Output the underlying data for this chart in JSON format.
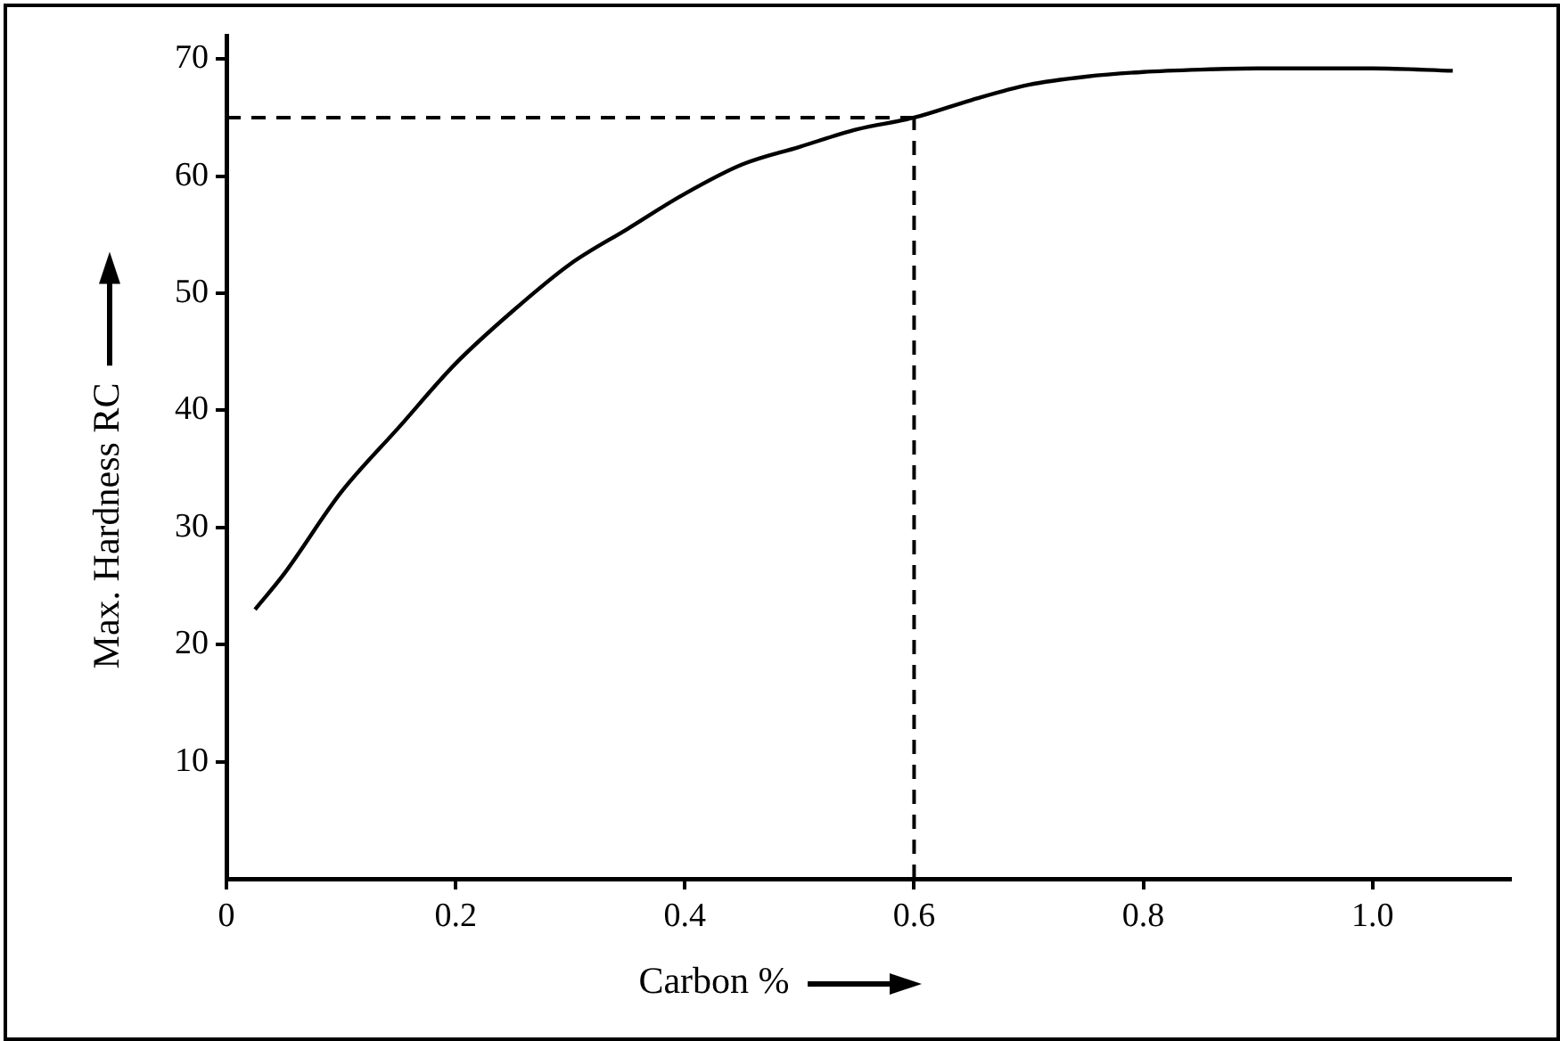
{
  "chart_data": {
    "type": "line",
    "xlabel": "Carbon %",
    "ylabel": "Max. Hardness RC",
    "x": [
      0.025,
      0.05,
      0.1,
      0.15,
      0.2,
      0.25,
      0.3,
      0.35,
      0.4,
      0.45,
      0.5,
      0.55,
      0.6,
      0.65,
      0.7,
      0.75,
      0.8,
      0.85,
      0.9,
      0.95,
      1.0,
      1.07
    ],
    "series": [
      {
        "color": "#000000",
        "values": [
          23,
          26,
          33,
          38.5,
          44,
          48.5,
          52.5,
          55.5,
          58.5,
          61,
          62.5,
          64,
          65,
          66.5,
          67.8,
          68.5,
          68.9,
          69.1,
          69.2,
          69.2,
          69.2,
          69
        ]
      }
    ],
    "xlim": [
      0,
      1.12
    ],
    "ylim": [
      0,
      72
    ],
    "xticks": [
      0,
      0.2,
      0.4,
      0.6,
      0.8,
      {
        "value": 1,
        "label": "1.0"
      }
    ],
    "yticks": [
      10,
      20,
      30,
      40,
      50,
      60,
      70
    ],
    "ref_lines": [
      {
        "axis": "y",
        "value": 65,
        "color": "#000000",
        "line_style": "dashed"
      },
      {
        "axis": "x",
        "value": 0.6,
        "color": "#000000",
        "line_style": "dashed"
      }
    ],
    "grid": false,
    "legend": false,
    "marker": "none",
    "line_style": "solid"
  }
}
